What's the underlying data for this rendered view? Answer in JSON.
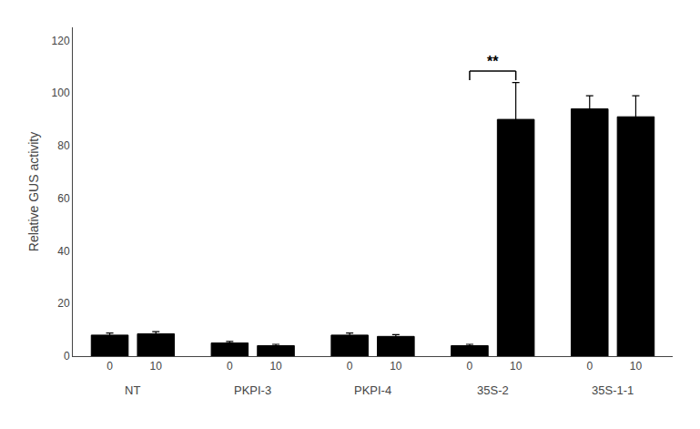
{
  "chart_data": {
    "type": "bar",
    "categories": [
      "NT",
      "PKPI-3",
      "PKPI-4",
      "35S-2",
      "35S-1-1"
    ],
    "series": [
      {
        "name": "0",
        "color": "#000000",
        "values": [
          8.0,
          5.0,
          8.0,
          4.0,
          94.0
        ],
        "errors": [
          0.8,
          0.6,
          0.8,
          0.5,
          5.0
        ]
      },
      {
        "name": "10",
        "color": "#000000",
        "values": [
          8.5,
          4.0,
          7.5,
          90.0,
          91.0
        ],
        "errors": [
          0.8,
          0.5,
          0.7,
          14.0,
          8.0
        ]
      }
    ],
    "ylabel": "Relative GUS activity",
    "ylim": [
      0,
      125
    ],
    "yticks": [
      0,
      20,
      40,
      60,
      80,
      100,
      120
    ],
    "grid": false,
    "annotations": [
      {
        "text": "**",
        "category": "35S-2"
      }
    ]
  }
}
